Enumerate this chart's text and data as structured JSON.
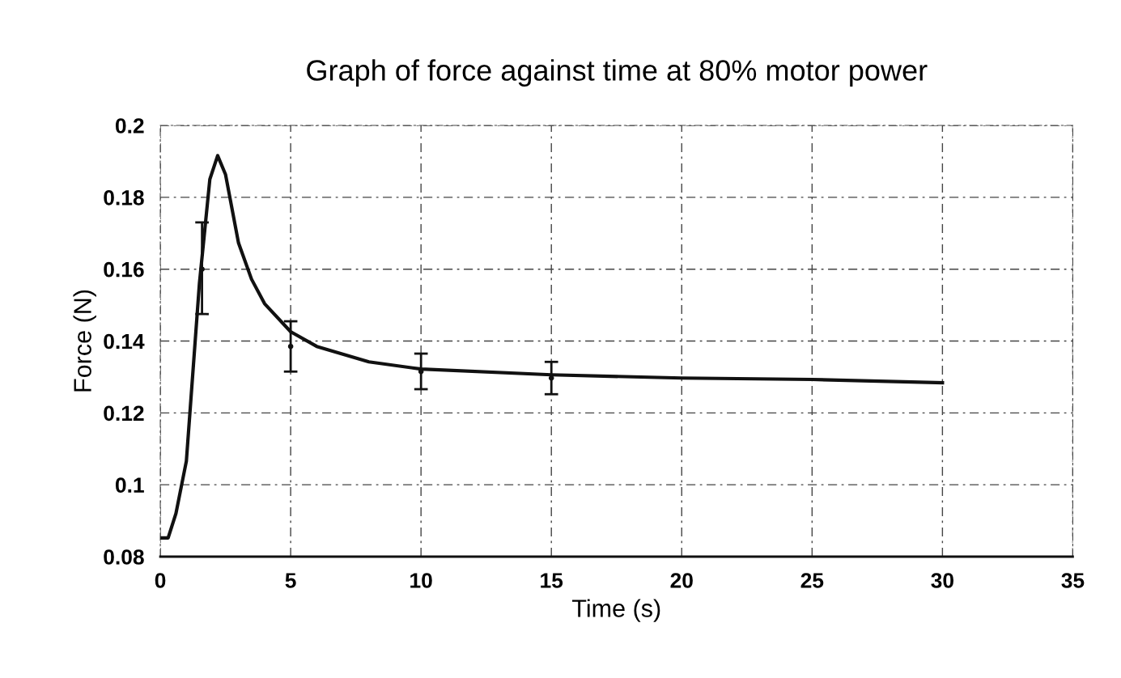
{
  "chart_data": {
    "type": "line",
    "title": "Graph of force against time at 80% motor power",
    "xlabel": "Time (s)",
    "ylabel": "Force (N)",
    "xlim": [
      0,
      35
    ],
    "xticks": [
      0,
      5,
      10,
      15,
      20,
      25,
      30,
      35
    ],
    "ylim": [
      0.08,
      0.2
    ],
    "yticks": [
      {
        "value": 0.08,
        "label": "0.08"
      },
      {
        "value": 0.1,
        "label": "0.1"
      },
      {
        "value": 0.12,
        "label": "0.12"
      },
      {
        "value": 0.14,
        "label": "0.14"
      },
      {
        "value": 0.16,
        "label": "0.16"
      },
      {
        "value": 0.18,
        "label": "0.18"
      },
      {
        "value": 0.2,
        "label": "0.2"
      }
    ],
    "grid": true,
    "marker": "none",
    "line_style": "solid",
    "series": [
      {
        "color": "#111111",
        "x": [
          0,
          0.3,
          0.6,
          1,
          1.5,
          1.9,
          2.2,
          2.5,
          3,
          3.5,
          4,
          5,
          6,
          8,
          10,
          15,
          20,
          25,
          30
        ],
        "values": [
          0.0852,
          0.0852,
          0.092,
          0.1066,
          0.156,
          0.185,
          0.1916,
          0.1864,
          0.1673,
          0.1572,
          0.1504,
          0.1426,
          0.1385,
          0.1342,
          0.1322,
          0.1306,
          0.1297,
          0.1293,
          0.1284
        ]
      },
      {
        "type": "scatter",
        "color": "#111111",
        "x": [
          1.6,
          5,
          10,
          15
        ],
        "values": [
          0.16,
          0.1385,
          0.1315,
          0.1297
        ],
        "errors": [
          [
            0.1475,
            0.173
          ],
          [
            0.1315,
            0.1455
          ],
          [
            0.1266,
            0.1365
          ],
          [
            0.1252,
            0.1342
          ]
        ]
      }
    ]
  }
}
